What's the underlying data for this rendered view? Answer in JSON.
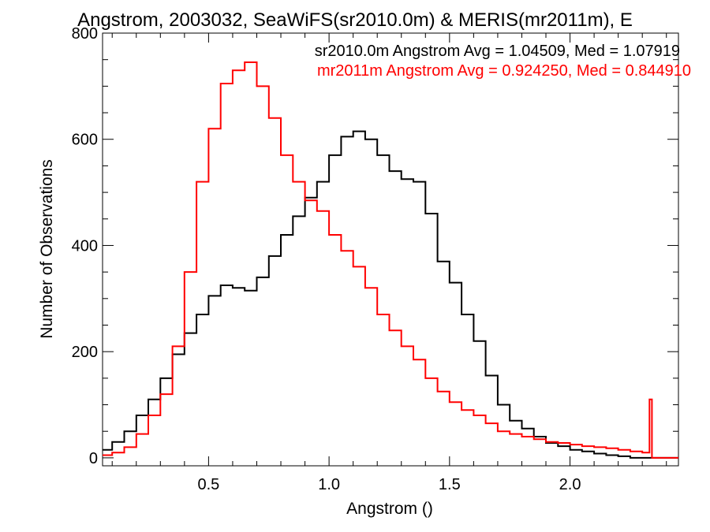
{
  "chart_data": {
    "type": "line",
    "step": true,
    "title": "Angstrom, 2003032, SeaWiFS(sr2010.0m) & MERIS(mr2011m), E",
    "xlabel": "Angstrom ()",
    "ylabel": "Number of Observations",
    "xlim": [
      0.06,
      2.45
    ],
    "ylim": [
      -15,
      800
    ],
    "xticks": [
      0.5,
      1.0,
      1.5,
      2.0
    ],
    "xtick_labels": [
      "0.5",
      "1.0",
      "1.5",
      "2.0"
    ],
    "yticks": [
      0,
      200,
      400,
      600,
      800
    ],
    "ytick_labels": [
      "0",
      "200",
      "400",
      "600",
      "800"
    ],
    "grid": false,
    "annotations": [
      {
        "text": "sr2010.0m Angstrom Avg = 1.04509, Med = 1.07919",
        "color": "#000000"
      },
      {
        "text": "mr2011m Angstrom Avg = 0.924250, Med = 0.844910",
        "color": "#ff0000"
      }
    ],
    "series": [
      {
        "color": "#000000",
        "x": [
          0.06,
          0.1,
          0.15,
          0.2,
          0.25,
          0.3,
          0.35,
          0.4,
          0.45,
          0.5,
          0.55,
          0.6,
          0.65,
          0.7,
          0.75,
          0.8,
          0.85,
          0.9,
          0.95,
          1.0,
          1.05,
          1.1,
          1.15,
          1.2,
          1.25,
          1.3,
          1.35,
          1.4,
          1.45,
          1.5,
          1.55,
          1.6,
          1.65,
          1.7,
          1.75,
          1.8,
          1.85,
          1.9,
          1.95,
          2.0,
          2.05,
          2.1,
          2.15,
          2.2,
          2.25,
          2.3,
          2.35,
          2.4,
          2.45
        ],
        "y": [
          15,
          30,
          50,
          80,
          110,
          150,
          195,
          235,
          270,
          305,
          325,
          320,
          315,
          340,
          380,
          420,
          455,
          490,
          520,
          570,
          605,
          615,
          600,
          570,
          540,
          525,
          520,
          460,
          370,
          330,
          270,
          220,
          155,
          100,
          70,
          55,
          40,
          28,
          22,
          15,
          12,
          8,
          5,
          3,
          0,
          0,
          0,
          0,
          0
        ]
      },
      {
        "color": "#ff0000",
        "x": [
          0.06,
          0.1,
          0.15,
          0.2,
          0.25,
          0.3,
          0.35,
          0.4,
          0.45,
          0.5,
          0.55,
          0.6,
          0.65,
          0.7,
          0.75,
          0.8,
          0.85,
          0.9,
          0.95,
          1.0,
          1.05,
          1.1,
          1.15,
          1.2,
          1.25,
          1.3,
          1.35,
          1.4,
          1.45,
          1.5,
          1.55,
          1.6,
          1.65,
          1.7,
          1.75,
          1.8,
          1.85,
          1.9,
          1.95,
          2.0,
          2.05,
          2.1,
          2.15,
          2.2,
          2.25,
          2.3,
          2.33,
          2.34,
          2.45
        ],
        "y": [
          5,
          10,
          20,
          45,
          80,
          120,
          210,
          350,
          520,
          620,
          705,
          730,
          745,
          700,
          640,
          570,
          520,
          485,
          465,
          420,
          390,
          360,
          320,
          270,
          240,
          210,
          185,
          150,
          125,
          105,
          90,
          80,
          65,
          50,
          45,
          40,
          35,
          30,
          28,
          25,
          22,
          20,
          18,
          15,
          12,
          10,
          110,
          0,
          0
        ]
      }
    ]
  }
}
